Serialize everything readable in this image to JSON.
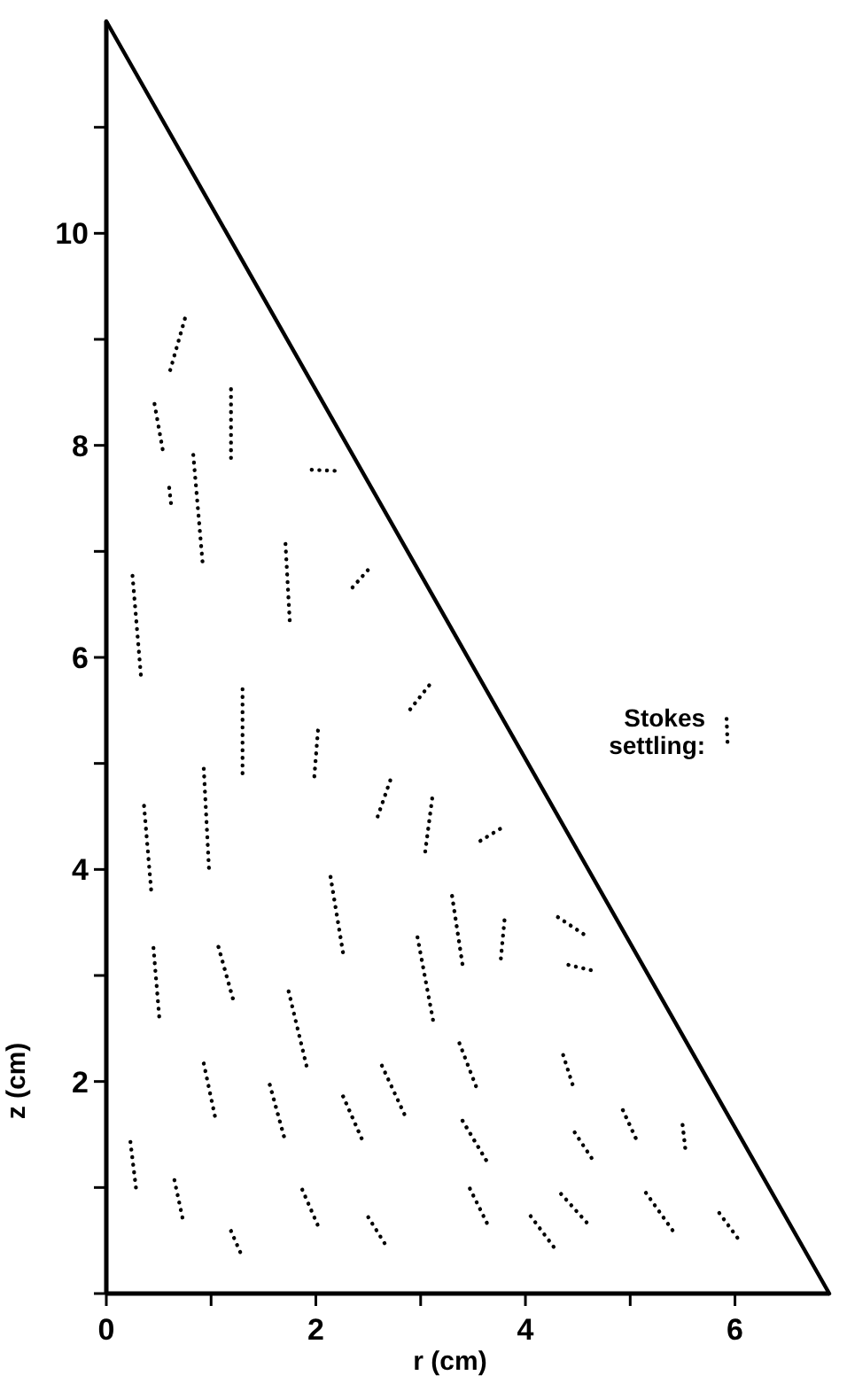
{
  "chart_data": {
    "type": "line",
    "xlabel": "r (cm)",
    "ylabel": "z (cm)",
    "xlim": [
      0,
      6.9
    ],
    "ylim": [
      0,
      12.0
    ],
    "xticks": [
      0,
      {
        "value": 1,
        "label": null
      },
      2,
      {
        "value": 3,
        "label": null
      },
      4,
      {
        "value": 5,
        "label": null
      },
      6
    ],
    "yticks": [
      {
        "value": 0,
        "label": null
      },
      {
        "value": 1,
        "label": null
      },
      2,
      {
        "value": 3,
        "label": null
      },
      4,
      {
        "value": 5,
        "label": null
      },
      6,
      {
        "value": 7,
        "label": null
      },
      8,
      {
        "value": 9,
        "label": null
      },
      10,
      {
        "value": 11,
        "label": null
      }
    ],
    "grid": false,
    "marker": "none",
    "annotations": [
      {
        "text": "Stokes settling:",
        "x": 5.92,
        "y": 5.3
      }
    ],
    "series": [
      {
        "color": "#000000",
        "line_style": "solid",
        "x": [
          0,
          6.9
        ],
        "values": [
          12.0,
          0
        ]
      },
      {
        "color": "#000000",
        "line_style": "dotted",
        "x": [
          5.92,
          5.93
        ],
        "values": [
          5.42,
          5.17
        ]
      },
      {
        "color": "#000000",
        "line_style": "dotted",
        "x": [
          0.61,
          0.76
        ],
        "values": [
          8.71,
          9.23
        ]
      },
      {
        "color": "#000000",
        "line_style": "dotted",
        "x": [
          0.46,
          0.54
        ],
        "values": [
          8.39,
          7.95
        ]
      },
      {
        "color": "#000000",
        "line_style": "dotted",
        "x": [
          0.6,
          0.62
        ],
        "values": [
          7.6,
          7.43
        ]
      },
      {
        "color": "#000000",
        "line_style": "dotted",
        "x": [
          1.19,
          1.19
        ],
        "values": [
          8.53,
          7.86
        ]
      },
      {
        "color": "#000000",
        "line_style": "dotted",
        "x": [
          0.83,
          0.92
        ],
        "values": [
          7.91,
          6.88
        ]
      },
      {
        "color": "#000000",
        "line_style": "dotted",
        "x": [
          1.96,
          2.18
        ],
        "values": [
          7.77,
          7.76
        ]
      },
      {
        "color": "#000000",
        "line_style": "dotted",
        "x": [
          1.71,
          1.75
        ],
        "values": [
          7.07,
          6.35
        ]
      },
      {
        "color": "#000000",
        "line_style": "dotted",
        "x": [
          2.35,
          2.52
        ],
        "values": [
          6.66,
          6.85
        ]
      },
      {
        "color": "#000000",
        "line_style": "dotted",
        "x": [
          0.25,
          0.33
        ],
        "values": [
          6.77,
          5.83
        ]
      },
      {
        "color": "#000000",
        "line_style": "dotted",
        "x": [
          2.9,
          3.1
        ],
        "values": [
          5.51,
          5.76
        ]
      },
      {
        "color": "#000000",
        "line_style": "dotted",
        "x": [
          1.3,
          1.3
        ],
        "values": [
          5.7,
          4.84
        ]
      },
      {
        "color": "#000000",
        "line_style": "dotted",
        "x": [
          2.02,
          1.98
        ],
        "values": [
          5.31,
          4.81
        ]
      },
      {
        "color": "#000000",
        "line_style": "dotted",
        "x": [
          0.93,
          0.98
        ],
        "values": [
          4.95,
          4.0
        ]
      },
      {
        "color": "#000000",
        "line_style": "dotted",
        "x": [
          0.36,
          0.43
        ],
        "values": [
          4.6,
          3.78
        ]
      },
      {
        "color": "#000000",
        "line_style": "dotted",
        "x": [
          2.71,
          2.59
        ],
        "values": [
          4.84,
          4.5
        ]
      },
      {
        "color": "#000000",
        "line_style": "dotted",
        "x": [
          3.11,
          3.04
        ],
        "values": [
          4.67,
          4.14
        ]
      },
      {
        "color": "#000000",
        "line_style": "dotted",
        "x": [
          2.14,
          2.27
        ],
        "values": [
          3.93,
          3.15
        ]
      },
      {
        "color": "#000000",
        "line_style": "dotted",
        "x": [
          0.45,
          0.51
        ],
        "values": [
          3.26,
          2.55
        ]
      },
      {
        "color": "#000000",
        "line_style": "dotted",
        "x": [
          1.07,
          1.22
        ],
        "values": [
          3.27,
          2.74
        ]
      },
      {
        "color": "#000000",
        "line_style": "dotted",
        "x": [
          1.74,
          1.91
        ],
        "values": [
          2.85,
          2.15
        ]
      },
      {
        "color": "#000000",
        "line_style": "dotted",
        "x": [
          2.97,
          3.12
        ],
        "values": [
          3.36,
          2.57
        ]
      },
      {
        "color": "#000000",
        "line_style": "dotted",
        "x": [
          0.93,
          1.05
        ],
        "values": [
          2.17,
          1.61
        ]
      },
      {
        "color": "#000000",
        "line_style": "dotted",
        "x": [
          1.56,
          1.71
        ],
        "values": [
          1.97,
          1.43
        ]
      },
      {
        "color": "#000000",
        "line_style": "dotted",
        "x": [
          2.26,
          2.46
        ],
        "values": [
          1.86,
          1.41
        ]
      },
      {
        "color": "#000000",
        "line_style": "dotted",
        "x": [
          2.63,
          2.85
        ],
        "values": [
          2.15,
          1.68
        ]
      },
      {
        "color": "#000000",
        "line_style": "dotted",
        "x": [
          0.23,
          0.29
        ],
        "values": [
          1.43,
          0.94
        ]
      },
      {
        "color": "#000000",
        "line_style": "dotted",
        "x": [
          0.65,
          0.73
        ],
        "values": [
          1.07,
          0.7
        ]
      },
      {
        "color": "#000000",
        "line_style": "dotted",
        "x": [
          1.87,
          2.02
        ],
        "values": [
          0.98,
          0.64
        ]
      },
      {
        "color": "#000000",
        "line_style": "dotted",
        "x": [
          1.19,
          1.3
        ],
        "values": [
          0.59,
          0.34
        ]
      },
      {
        "color": "#000000",
        "line_style": "dotted",
        "x": [
          2.5,
          2.69
        ],
        "values": [
          0.72,
          0.42
        ]
      },
      {
        "color": "#000000",
        "line_style": "dotted",
        "x": [
          3.57,
          3.77
        ],
        "values": [
          4.27,
          4.39
        ]
      },
      {
        "color": "#000000",
        "line_style": "dotted",
        "x": [
          3.3,
          3.4
        ],
        "values": [
          3.75,
          3.1
        ]
      },
      {
        "color": "#000000",
        "line_style": "dotted",
        "x": [
          3.8,
          3.76
        ],
        "values": [
          3.52,
          3.1
        ]
      },
      {
        "color": "#000000",
        "line_style": "dotted",
        "x": [
          4.31,
          4.6
        ],
        "values": [
          3.55,
          3.36
        ]
      },
      {
        "color": "#000000",
        "line_style": "dotted",
        "x": [
          4.41,
          4.67
        ],
        "values": [
          3.1,
          3.04
        ]
      },
      {
        "color": "#000000",
        "line_style": "dotted",
        "x": [
          3.37,
          3.55
        ],
        "values": [
          2.36,
          1.9
        ]
      },
      {
        "color": "#000000",
        "line_style": "dotted",
        "x": [
          4.36,
          4.47
        ],
        "values": [
          2.25,
          1.91
        ]
      },
      {
        "color": "#000000",
        "line_style": "dotted",
        "x": [
          3.4,
          3.66
        ],
        "values": [
          1.63,
          1.2
        ]
      },
      {
        "color": "#000000",
        "line_style": "dotted",
        "x": [
          4.47,
          4.67
        ],
        "values": [
          1.52,
          1.22
        ]
      },
      {
        "color": "#000000",
        "line_style": "dotted",
        "x": [
          4.93,
          5.06
        ],
        "values": [
          1.73,
          1.45
        ]
      },
      {
        "color": "#000000",
        "line_style": "dotted",
        "x": [
          5.5,
          5.53
        ],
        "values": [
          1.59,
          1.33
        ]
      },
      {
        "color": "#000000",
        "line_style": "dotted",
        "x": [
          3.47,
          3.66
        ],
        "values": [
          0.99,
          0.61
        ]
      },
      {
        "color": "#000000",
        "line_style": "dotted",
        "x": [
          4.05,
          4.3
        ],
        "values": [
          0.73,
          0.4
        ]
      },
      {
        "color": "#000000",
        "line_style": "dotted",
        "x": [
          4.34,
          4.63
        ],
        "values": [
          0.94,
          0.62
        ]
      },
      {
        "color": "#000000",
        "line_style": "dotted",
        "x": [
          5.15,
          5.43
        ],
        "values": [
          0.95,
          0.56
        ]
      },
      {
        "color": "#000000",
        "line_style": "dotted",
        "x": [
          5.85,
          6.05
        ],
        "values": [
          0.76,
          0.49
        ]
      }
    ]
  }
}
